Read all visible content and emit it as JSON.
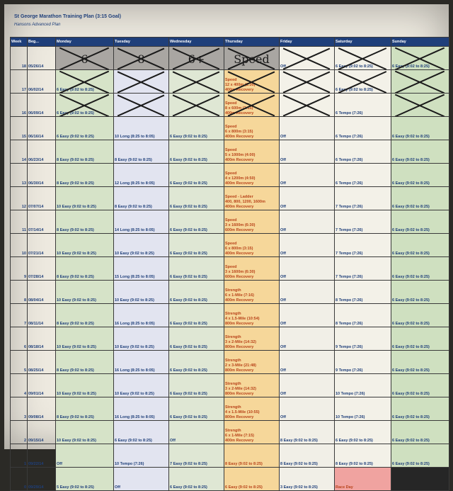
{
  "title": "St George Marathon Training Plan (3:15 Goal)",
  "subtitle": "Hansons Advanced Plan",
  "headers": [
    "Week",
    "Beg...",
    "Monday",
    "Tuesday",
    "Wednesday",
    "Thursday",
    "Friday",
    "Saturday",
    "Sunday"
  ],
  "rows": [
    {
      "week": "18",
      "beg": "05/26/14",
      "mon": "6",
      "tue": "8",
      "wed": "6+",
      "thu": "Speed",
      "fri": "Off",
      "sat": "6 Easy (9:02 to 8:25)",
      "sun": "6 Easy (9:02 to 8:25)"
    },
    {
      "week": "17",
      "beg": "06/02/14",
      "mon": "6 Easy (9:02 to 8:25)",
      "tue": "",
      "wed": "",
      "thu": "Speed\n12 x 400m (1:30)\n400m Recovery",
      "fri": "",
      "sat": "6 Easy (9:02 to 8:25)",
      "sun": ""
    },
    {
      "week": "16",
      "beg": "06/09/14",
      "mon": "6 Easy (9:02 to 8:25)",
      "tue": "",
      "wed": "",
      "thu": "Speed\n8 x 600m (2:15)\n400m Recovery",
      "fri": "",
      "sat": "6 Tempo (7:26)",
      "sun": ""
    },
    {
      "week": "15",
      "beg": "06/16/14",
      "mon": "6 Easy (9:02 to 8:25)",
      "tue": "10 Long (8:25 to 8:05)",
      "wed": "6 Easy (9:02 to 8:25)",
      "thu": "Speed\n6 x 800m (3:15)\n400m Recovery",
      "fri": "Off",
      "sat": "6 Tempo (7:26)",
      "sun": "6 Easy (9:02 to 8:25)"
    },
    {
      "week": "14",
      "beg": "06/23/14",
      "mon": "8 Easy (9:02 to 8:25)",
      "tue": "8 Easy (9:02 to 8:25)",
      "wed": "6 Easy (9:02 to 8:25)",
      "thu": "Speed\n5 x 1000m (4:00)\n400m Recovery",
      "fri": "Off",
      "sat": "6 Tempo (7:26)",
      "sun": "6 Easy (9:02 to 8:25)"
    },
    {
      "week": "13",
      "beg": "06/30/14",
      "mon": "8 Easy (9:02 to 8:25)",
      "tue": "12 Long (8:25 to 8:05)",
      "wed": "6 Easy (9:02 to 8:25)",
      "thu": "Speed\n4 x 1200m (4:50)\n400m Recovery",
      "fri": "Off",
      "sat": "6 Tempo (7:26)",
      "sun": "6 Easy (9:02 to 8:25)"
    },
    {
      "week": "12",
      "beg": "07/07/14",
      "mon": "10 Easy (9:02 to 8:25)",
      "tue": "8 Easy (9:02 to 8:25)",
      "wed": "6 Easy (9:02 to 8:25)",
      "thu": "Speed - Ladder\n400, 800, 1200, 1600m\n400m Recovery",
      "fri": "Off",
      "sat": "7 Tempo (7:26)",
      "sun": "6 Easy (9:02 to 8:25)"
    },
    {
      "week": "11",
      "beg": "07/14/14",
      "mon": "8 Easy (9:02 to 8:25)",
      "tue": "14 Long (8:25 to 8:05)",
      "wed": "6 Easy (9:02 to 8:25)",
      "thu": "Speed\n3 x 1600m (6:30)\n600m Recovery",
      "fri": "Off",
      "sat": "7 Tempo (7:26)",
      "sun": "6 Easy (9:02 to 8:25)"
    },
    {
      "week": "10",
      "beg": "07/21/14",
      "mon": "10 Easy (9:02 to 8:25)",
      "tue": "10 Easy (9:02 to 8:25)",
      "wed": "6 Easy (9:02 to 8:25)",
      "thu": "Speed\n6 x 800m (3:15)\n400m Recovery",
      "fri": "Off",
      "sat": "7 Tempo (7:26)",
      "sun": "6 Easy (9:02 to 8:25)"
    },
    {
      "week": "9",
      "beg": "07/28/14",
      "mon": "8 Easy (9:02 to 8:25)",
      "tue": "15 Long (8:25 to 8:05)",
      "wed": "6 Easy (9:02 to 8:25)",
      "thu": "Speed\n3 x 1600m (6:30)\n600m Recovery",
      "fri": "Off",
      "sat": "7 Tempo (7:26)",
      "sun": "6 Easy (9:02 to 8:25)"
    },
    {
      "week": "8",
      "beg": "08/04/14",
      "mon": "10 Easy (9:02 to 8:25)",
      "tue": "10 Easy (9:02 to 8:25)",
      "wed": "6 Easy (9:02 to 8:25)",
      "thu": "Strength\n6 x 1-Mile (7:16)\n400m Recovery",
      "fri": "Off",
      "sat": "8 Tempo (7:26)",
      "sun": "6 Easy (9:02 to 8:25)"
    },
    {
      "week": "7",
      "beg": "08/11/14",
      "mon": "8 Easy (9:02 to 8:25)",
      "tue": "16 Long (8:25 to 8:05)",
      "wed": "6 Easy (9:02 to 8:25)",
      "thu": "Strength\n4 x 1.5-Mile (10:54)\n800m Recovery",
      "fri": "Off",
      "sat": "8 Tempo (7:26)",
      "sun": "6 Easy (9:02 to 8:25)"
    },
    {
      "week": "6",
      "beg": "08/18/14",
      "mon": "10 Easy (9:02 to 8:25)",
      "tue": "10 Easy (9:02 to 8:25)",
      "wed": "6 Easy (9:02 to 8:25)",
      "thu": "Strength\n3 x 2-Mile (14:32)\n800m Recovery",
      "fri": "Off",
      "sat": "9 Tempo (7:26)",
      "sun": "6 Easy (9:02 to 8:25)"
    },
    {
      "week": "5",
      "beg": "08/25/14",
      "mon": "8 Easy (9:02 to 8:25)",
      "tue": "16 Long (8:25 to 8:05)",
      "wed": "6 Easy (9:02 to 8:25)",
      "thu": "Strength\n2 x 3-Mile (21:48)\n800m Recovery",
      "fri": "Off",
      "sat": "9 Tempo (7:26)",
      "sun": "6 Easy (9:02 to 8:25)"
    },
    {
      "week": "4",
      "beg": "09/01/14",
      "mon": "10 Easy (9:02 to 8:25)",
      "tue": "10 Easy (9:02 to 8:25)",
      "wed": "6 Easy (9:02 to 8:25)",
      "thu": "Strength\n3 x 2-Mile (14:32)\n800m Recovery",
      "fri": "Off",
      "sat": "10 Tempo (7:26)",
      "sun": "6 Easy (9:02 to 8:25)"
    },
    {
      "week": "3",
      "beg": "09/08/14",
      "mon": "8 Easy (9:02 to 8:25)",
      "tue": "16 Long (8:25 to 8:05)",
      "wed": "6 Easy (9:02 to 8:25)",
      "thu": "Strength\n4 x 1.5-Mile (10:55)\n800m Recovery",
      "fri": "Off",
      "sat": "10 Tempo (7:26)",
      "sun": "6 Easy (9:02 to 8:25)"
    },
    {
      "week": "2",
      "beg": "09/15/14",
      "mon": "10 Easy (9:02 to 8:25)",
      "tue": "6 Easy (9:02 to 8:25)",
      "wed": "Off",
      "thu": "Strength\n6 x 1-Mile (7:15)\n400m Recovery",
      "fri": "8 Easy (9:02 to 8:25)",
      "sat": "6 Easy (9:02 to 8:25)",
      "sun": "6 Easy (9:02 to 8:25)"
    },
    {
      "week": "1",
      "beg": "09/22/14",
      "mon": "Off",
      "tue": "10 Tempo (7:26)",
      "wed": "7 Easy (9:02 to 8:25)",
      "thu": "8 Easy (9:02 to 8:25)",
      "fri": "8 Easy (9:02 to 8:25)",
      "sat": "8 Easy (9:02 to 8:25)",
      "sun": "6 Easy (9:02 to 8:25)"
    },
    {
      "week": "0",
      "beg": "09/29/14",
      "mon": "5 Easy (9:02 to 8:25)",
      "tue": "Off",
      "wed": "6 Easy (9:02 to 8:25)",
      "thu": "6 Easy (9:02 to 8:25)",
      "fri": "3 Easy (9:02 to 8:25)",
      "sat": "Race Day",
      "sun": ""
    }
  ]
}
